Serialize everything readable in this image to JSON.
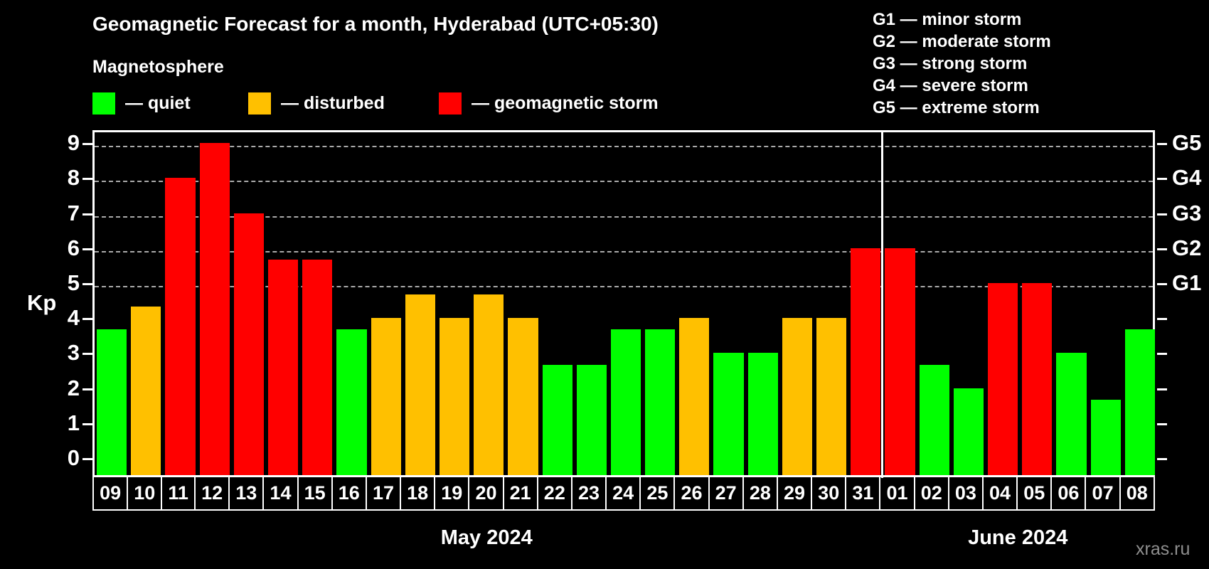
{
  "title": "Geomagnetic Forecast for a month, Hyderabad (UTC+05:30)",
  "subtitle": "Magnetosphere",
  "legend": {
    "items": [
      {
        "key": "quiet",
        "label": "— quiet",
        "color": "#00ff00"
      },
      {
        "key": "disturbed",
        "label": "— disturbed",
        "color": "#ffc000"
      },
      {
        "key": "storm",
        "label": "— geomagnetic storm",
        "color": "#ff0000"
      }
    ]
  },
  "storm_scale": [
    "G1 — minor storm",
    "G2 — moderate storm",
    "G3 — strong storm",
    "G4 — severe storm",
    "G5 — extreme storm"
  ],
  "watermark": "xras.ru",
  "chart_data": {
    "type": "bar",
    "title": "Geomagnetic Forecast for a month, Hyderabad (UTC+05:30)",
    "xlabel": "",
    "ylabel": "Kp",
    "ylim": [
      0,
      9
    ],
    "yticks": [
      0,
      1,
      2,
      3,
      4,
      5,
      6,
      7,
      8,
      9
    ],
    "gridlines": [
      5,
      6,
      7,
      8,
      9
    ],
    "grid": "dashed horizontal lines at storm levels G1-G5 only",
    "legend_position": "top-left",
    "right_axis": [
      {
        "value": 5,
        "label": "G1"
      },
      {
        "value": 6,
        "label": "G2"
      },
      {
        "value": 7,
        "label": "G3"
      },
      {
        "value": 8,
        "label": "G4"
      },
      {
        "value": 9,
        "label": "G5"
      }
    ],
    "categories": [
      "09",
      "10",
      "11",
      "12",
      "13",
      "14",
      "15",
      "16",
      "17",
      "18",
      "19",
      "20",
      "21",
      "22",
      "23",
      "24",
      "25",
      "26",
      "27",
      "28",
      "29",
      "30",
      "31",
      "01",
      "02",
      "03",
      "04",
      "05",
      "06",
      "07",
      "08"
    ],
    "values": [
      3.67,
      4.33,
      8,
      9,
      7,
      5.67,
      5.67,
      3.67,
      4,
      4.67,
      4,
      4.67,
      4,
      2.67,
      2.67,
      3.67,
      3.67,
      4,
      3,
      3,
      4,
      4,
      6,
      6,
      2.67,
      2,
      5,
      5,
      3,
      1.67,
      3.67
    ],
    "statuses": [
      "quiet",
      "disturbed",
      "storm",
      "storm",
      "storm",
      "storm",
      "storm",
      "quiet",
      "disturbed",
      "disturbed",
      "disturbed",
      "disturbed",
      "disturbed",
      "quiet",
      "quiet",
      "quiet",
      "quiet",
      "disturbed",
      "quiet",
      "quiet",
      "disturbed",
      "disturbed",
      "storm",
      "storm",
      "quiet",
      "quiet",
      "storm",
      "storm",
      "quiet",
      "quiet",
      "quiet"
    ],
    "colors": {
      "quiet": "#00ff00",
      "disturbed": "#ffc000",
      "storm": "#ff0000"
    },
    "months": [
      {
        "label": "May 2024",
        "days": 23
      },
      {
        "label": "June 2024",
        "days": 8
      }
    ]
  }
}
